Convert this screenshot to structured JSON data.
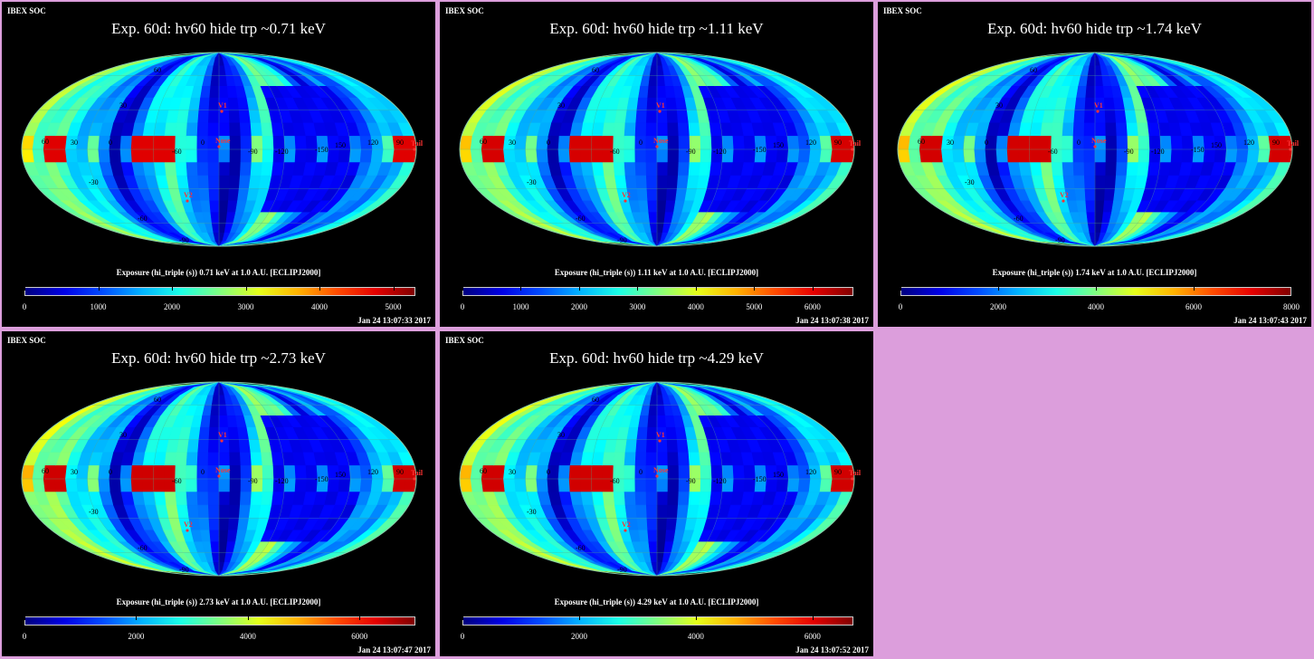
{
  "panels": [
    {
      "corner": "IBEX SOC",
      "title": "Exp.   60d: hv60 hide trp ~0.71 keV",
      "colorbar_label": "Exposure (hi_triple (s))  0.71 keV at 1.0 A.U. [ECLIPJ2000]",
      "ticks": [
        "0",
        "1000",
        "2000",
        "3000",
        "4000",
        "5000"
      ],
      "scale_max": 5300,
      "timestamp": "Jan 24 13:07:33 2017",
      "intensity": 0.55
    },
    {
      "corner": "IBEX SOC",
      "title": "Exp.   60d: hv60 hide trp ~1.11 keV",
      "colorbar_label": "Exposure (hi_triple (s))  1.11 keV at 1.0 A.U. [ECLIPJ2000]",
      "ticks": [
        "0",
        "1000",
        "2000",
        "3000",
        "4000",
        "5000",
        "6000"
      ],
      "scale_max": 6700,
      "timestamp": "Jan 24 13:07:38 2017",
      "intensity": 0.65
    },
    {
      "corner": "IBEX SOC",
      "title": "Exp.   60d: hv60 hide trp ~1.74 keV",
      "colorbar_label": "Exposure (hi_triple (s))  1.74 keV at 1.0 A.U. [ECLIPJ2000]",
      "ticks": [
        "0",
        "2000",
        "4000",
        "6000",
        "8000"
      ],
      "scale_max": 8000,
      "timestamp": "Jan 24 13:07:43 2017",
      "intensity": 0.68
    },
    {
      "corner": "IBEX SOC",
      "title": "Exp.   60d: hv60 hide trp ~2.73 keV",
      "colorbar_label": "Exposure (hi_triple (s))  2.73 keV at 1.0 A.U. [ECLIPJ2000]",
      "ticks": [
        "0",
        "2000",
        "4000",
        "6000"
      ],
      "scale_max": 7000,
      "timestamp": "Jan 24 13:07:47 2017",
      "intensity": 0.72
    },
    {
      "corner": "IBEX SOC",
      "title": "Exp.   60d: hv60 hide trp ~4.29 keV",
      "colorbar_label": "Exposure (hi_triple (s))  4.29 keV at 1.0 A.U. [ECLIPJ2000]",
      "ticks": [
        "0",
        "2000",
        "4000",
        "6000"
      ],
      "scale_max": 6700,
      "timestamp": "Jan 24 13:07:52 2017",
      "intensity": 0.7
    }
  ],
  "map_labels": {
    "lat": [
      "60",
      "30",
      "0",
      "-30",
      "-60",
      "-90"
    ],
    "lon": [
      "60",
      "30",
      "0",
      "-60",
      "-90",
      "-120",
      "-150",
      "150",
      "120",
      "90"
    ],
    "markers": {
      "v1": "V1",
      "nose": "Nose",
      "v2": "V2",
      "tail": "Tail"
    }
  },
  "colors": {
    "background": "#dc9edc",
    "panel": "#000000",
    "marker": "#ff3333"
  }
}
